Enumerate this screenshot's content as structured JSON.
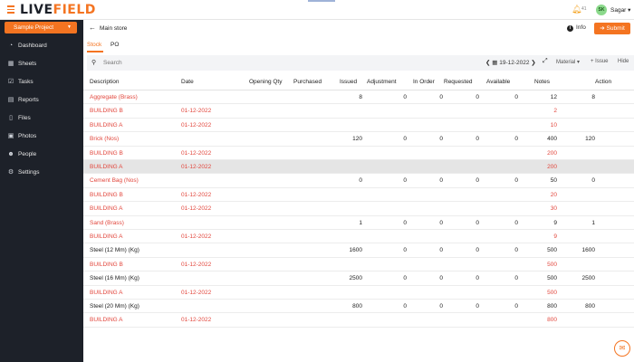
{
  "app": {
    "logo_main": "LIVE",
    "logo_accent": "FIELD",
    "bell_count": "41",
    "avatar_initials": "SK",
    "username": "Sagar ▾"
  },
  "sidebar": {
    "project": "Sample Project",
    "items": [
      {
        "label": "Dashboard",
        "icon": "dashboard-icon"
      },
      {
        "label": "Sheets",
        "icon": "sheets-icon"
      },
      {
        "label": "Tasks",
        "icon": "tasks-icon"
      },
      {
        "label": "Reports",
        "icon": "reports-icon"
      },
      {
        "label": "Files",
        "icon": "files-icon"
      },
      {
        "label": "Photos",
        "icon": "photos-icon"
      },
      {
        "label": "People",
        "icon": "people-icon"
      },
      {
        "label": "Settings",
        "icon": "settings-icon"
      }
    ]
  },
  "header": {
    "title": "Main store",
    "info_label": "Info",
    "submit_label": "Submit"
  },
  "tabs": [
    {
      "label": "Stock",
      "active": true
    },
    {
      "label": "PO",
      "active": false
    }
  ],
  "toolbar": {
    "search_placeholder": "Search",
    "date_prev": "❮",
    "date": "19-12-2022",
    "date_next": "❯",
    "material_label": "Material ▾",
    "issue_label": "+ Issue",
    "hide_label": "Hide"
  },
  "table": {
    "headers": [
      "Description",
      "Date",
      "Opening Qty",
      "Purchased",
      "Issued",
      "Adjustment",
      "In Order",
      "Requested",
      "Available",
      "Notes",
      "Action"
    ],
    "rows": [
      {
        "type": "item",
        "red": true,
        "description": "Aggregate (Brass)",
        "date": "",
        "opening": "8",
        "purchased": "0",
        "issued": "0",
        "adjustment": "0",
        "inorder": "0",
        "requested": "12",
        "available": "8"
      },
      {
        "type": "sub",
        "description": "BUILDING B",
        "date": "01-12-2022",
        "requested": "2"
      },
      {
        "type": "sub",
        "description": "BUILDING A",
        "date": "01-12-2022",
        "requested": "10"
      },
      {
        "type": "item",
        "red": true,
        "description": "Brick (Nos)",
        "date": "",
        "opening": "120",
        "purchased": "0",
        "issued": "0",
        "adjustment": "0",
        "inorder": "0",
        "requested": "400",
        "available": "120"
      },
      {
        "type": "sub",
        "description": "BUILDING B",
        "date": "01-12-2022",
        "requested": "200"
      },
      {
        "type": "sub",
        "highlight": true,
        "description": "BUILDING A",
        "date": "01-12-2022",
        "requested": "200"
      },
      {
        "type": "item",
        "red": true,
        "description": "Cement Bag (Nos)",
        "date": "",
        "opening": "0",
        "purchased": "0",
        "issued": "0",
        "adjustment": "0",
        "inorder": "0",
        "requested": "50",
        "available": "0"
      },
      {
        "type": "sub",
        "description": "BUILDING B",
        "date": "01-12-2022",
        "requested": "20"
      },
      {
        "type": "sub",
        "description": "BUILDING A",
        "date": "01-12-2022",
        "requested": "30"
      },
      {
        "type": "item",
        "red": true,
        "description": "Sand (Brass)",
        "date": "",
        "opening": "1",
        "purchased": "0",
        "issued": "0",
        "adjustment": "0",
        "inorder": "0",
        "requested": "9",
        "available": "1"
      },
      {
        "type": "sub",
        "description": "BUILDING A",
        "date": "01-12-2022",
        "requested": "9"
      },
      {
        "type": "item",
        "red": false,
        "description": "Steel (12 Mm) (Kg)",
        "date": "",
        "opening": "1600",
        "purchased": "0",
        "issued": "0",
        "adjustment": "0",
        "inorder": "0",
        "requested": "500",
        "available": "1600"
      },
      {
        "type": "sub",
        "description": "BUILDING B",
        "date": "01-12-2022",
        "requested": "500"
      },
      {
        "type": "item",
        "red": false,
        "description": "Steel (16 Mm) (Kg)",
        "date": "",
        "opening": "2500",
        "purchased": "0",
        "issued": "0",
        "adjustment": "0",
        "inorder": "0",
        "requested": "500",
        "available": "2500"
      },
      {
        "type": "sub",
        "description": "BUILDING A",
        "date": "01-12-2022",
        "requested": "500"
      },
      {
        "type": "item",
        "red": false,
        "description": "Steel (20 Mm) (Kg)",
        "date": "",
        "opening": "800",
        "purchased": "0",
        "issued": "0",
        "adjustment": "0",
        "inorder": "0",
        "requested": "800",
        "available": "800"
      },
      {
        "type": "sub",
        "description": "BUILDING A",
        "date": "01-12-2022",
        "requested": "800"
      }
    ]
  }
}
